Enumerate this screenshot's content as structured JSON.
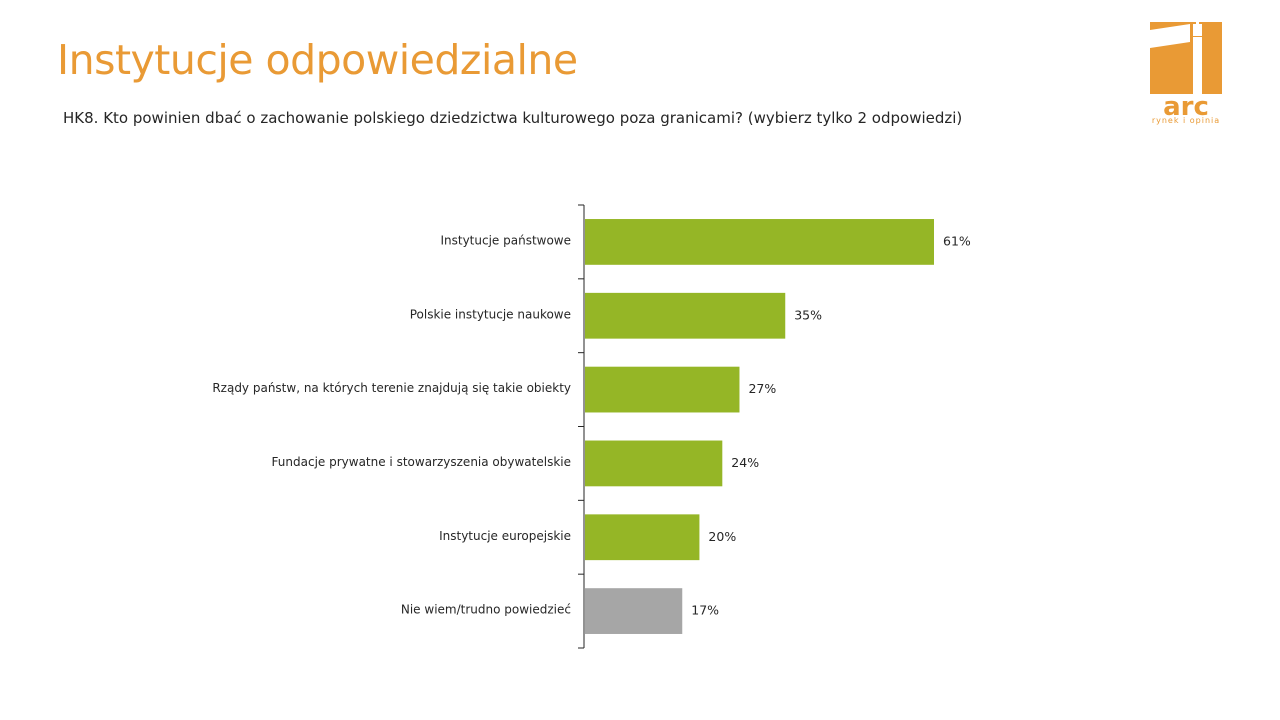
{
  "header": {
    "title": "Instytucje odpowiedzialne",
    "question": "HK8. Kto powinien dbać o zachowanie polskiego dziedzictwa kulturowego poza granicami? (wybierz tylko 2 odpowiedzi)"
  },
  "logo": {
    "text": "arc",
    "tagline": "rynek i opinia",
    "color": "#e99a35"
  },
  "chart_data": {
    "type": "bar",
    "orientation": "horizontal",
    "categories": [
      "Instytucje państwowe",
      "Polskie instytucje naukowe",
      "Rządy państw, na których terenie znajdują się takie obiekty",
      "Fundacje prywatne i stowarzyszenia obywatelskie",
      "Instytucje europejskie",
      "Nie wiem/trudno powiedzieć"
    ],
    "values": [
      61,
      35,
      27,
      24,
      20,
      17
    ],
    "value_labels": [
      "61%",
      "35%",
      "27%",
      "24%",
      "20%",
      "17%"
    ],
    "bar_colors": [
      "#95b626",
      "#95b626",
      "#95b626",
      "#95b626",
      "#95b626",
      "#a6a6a6"
    ],
    "unit": "%",
    "xlim": [
      0,
      100
    ],
    "grid": false,
    "legend": false
  }
}
